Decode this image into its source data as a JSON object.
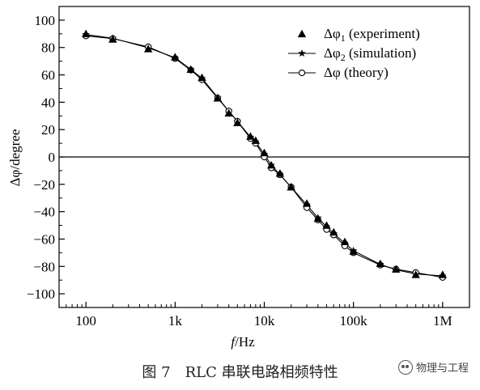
{
  "chart_data": {
    "type": "line",
    "x_scale": "log",
    "xlabel_var": "f",
    "xlabel_unit": "/Hz",
    "ylabel": "Δφ/degree",
    "xlim": [
      50,
      2000000
    ],
    "ylim": [
      -110,
      110
    ],
    "x_ticks": [
      100,
      1000,
      10000,
      100000,
      1000000
    ],
    "x_tick_labels": [
      "100",
      "1k",
      "10k",
      "100k",
      "1M"
    ],
    "y_ticks": [
      100,
      80,
      60,
      40,
      20,
      0,
      -20,
      -40,
      -60,
      -80,
      -100
    ],
    "y_tick_labels": [
      "100",
      "80",
      "60",
      "40",
      "20",
      "0",
      "−20",
      "−40",
      "−60",
      "−80",
      "−100"
    ],
    "zero_line": true,
    "grid": false,
    "legend_position": "top-right",
    "series": [
      {
        "name": "Δφ1 (experiment)",
        "name_base": "Δφ",
        "name_sub": "1",
        "name_rest": " (experiment)",
        "marker": "triangle",
        "line": false,
        "x": [
          100,
          200,
          500,
          1000,
          1500,
          2000,
          3000,
          4000,
          5000,
          7000,
          8000,
          10000,
          12000,
          15000,
          20000,
          30000,
          40000,
          50000,
          60000,
          80000,
          100000,
          200000,
          300000,
          500000,
          1000000
        ],
        "y": [
          90,
          86,
          79,
          73,
          64,
          58,
          43,
          32,
          25,
          15,
          12,
          3,
          -6,
          -12,
          -22,
          -34,
          -45,
          -50,
          -55,
          -62,
          -69,
          -78,
          -82,
          -86,
          -86
        ]
      },
      {
        "name": "Δφ2 (simulation)",
        "name_base": "Δφ",
        "name_sub": "2",
        "name_rest": " (simulation)",
        "marker": "star",
        "line": true,
        "x": [
          100,
          200,
          500,
          1000,
          1500,
          2000,
          3000,
          4000,
          5000,
          7000,
          8000,
          10000,
          12000,
          15000,
          20000,
          30000,
          40000,
          50000,
          60000,
          80000,
          100000,
          200000,
          300000,
          500000,
          1000000
        ],
        "y": [
          89.5,
          86.8,
          79.8,
          72.5,
          64,
          57.5,
          43.5,
          33.5,
          26,
          14.5,
          11,
          2,
          -6,
          -13,
          -22,
          -35,
          -44.5,
          -51,
          -56,
          -63,
          -68.5,
          -78.5,
          -82.5,
          -85.5,
          -87
        ]
      },
      {
        "name": "Δφ (theory)",
        "name_base": "Δφ",
        "name_sub": "",
        "name_rest": " (theory)",
        "marker": "circle",
        "line": true,
        "x": [
          100,
          200,
          500,
          1000,
          1500,
          2000,
          3000,
          4000,
          5000,
          7000,
          8000,
          10000,
          12000,
          15000,
          20000,
          30000,
          40000,
          50000,
          60000,
          80000,
          100000,
          200000,
          300000,
          500000,
          1000000
        ],
        "y": [
          88.5,
          86.5,
          80.5,
          72,
          63.5,
          56.5,
          43,
          33.5,
          26,
          13.5,
          10,
          0,
          -8,
          -13,
          -22,
          -37,
          -46,
          -53,
          -57,
          -65,
          -70,
          -79,
          -82,
          -84.5,
          -88
        ]
      }
    ]
  },
  "caption": "图 7　RLC 串联电路相频特性",
  "watermark": {
    "icon": "wechat-icon",
    "text": "物理与工程"
  }
}
